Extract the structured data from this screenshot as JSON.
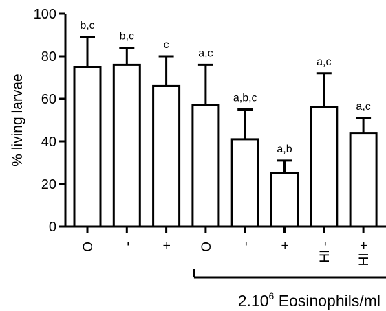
{
  "chart_data": {
    "type": "bar",
    "ylabel": "% living larvae",
    "ylim": [
      0,
      100
    ],
    "yticks": [
      0,
      20,
      40,
      60,
      80,
      100
    ],
    "categories": [
      "O",
      "-",
      "+",
      "O",
      "-",
      "+",
      "HI -",
      "HI +"
    ],
    "values": [
      75,
      76,
      66,
      57,
      41,
      25,
      56,
      44
    ],
    "error_upper": [
      89,
      84,
      80,
      76,
      55,
      31,
      72,
      51
    ],
    "significance_labels": [
      "b,c",
      "b,c",
      "c",
      "a,c",
      "a,b,c",
      "a,b",
      "a,c",
      "a,c"
    ],
    "group_bracket": {
      "label_base": "2.10",
      "label_sup": "6",
      "label_rest": " Eosinophils/ml",
      "from_category": 3,
      "to_category": 7
    },
    "grid": false,
    "legend": "none"
  }
}
